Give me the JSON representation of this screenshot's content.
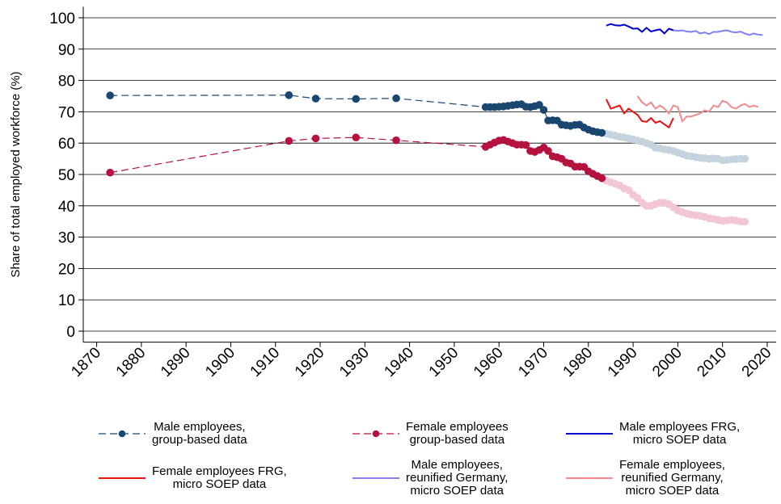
{
  "chart_data": {
    "type": "line",
    "y_label": "Share of total employed workforce (%)",
    "xlim": [
      1867,
      2022
    ],
    "ylim": [
      -3.5,
      103.5
    ],
    "xticks": [
      1870,
      1880,
      1890,
      1900,
      1910,
      1920,
      1930,
      1940,
      1950,
      1960,
      1970,
      1980,
      1990,
      2000,
      2010,
      2020
    ],
    "yticks": [
      0,
      10,
      20,
      30,
      40,
      50,
      60,
      70,
      80,
      90,
      100
    ],
    "grid": true,
    "series": [
      {
        "name": "Male employees,\ngroup-based data",
        "color": "#1a476f",
        "style": "dashed",
        "markers": true,
        "x": [
          1873,
          1913,
          1919,
          1928,
          1937,
          1957,
          1958,
          1959,
          1960,
          1961,
          1962,
          1963,
          1964,
          1965,
          1966,
          1967,
          1968,
          1969,
          1970,
          1971,
          1972,
          1973,
          1974,
          1975,
          1976,
          1977,
          1978,
          1979,
          1980,
          1981,
          1982,
          1983
        ],
        "values": [
          75.2,
          75.3,
          74.2,
          74.1,
          74.3,
          71.5,
          71.5,
          71.5,
          71.6,
          71.7,
          71.9,
          72.1,
          72.3,
          72.4,
          71.6,
          71.5,
          71.8,
          72.2,
          70.6,
          67.2,
          67.3,
          67.2,
          65.9,
          65.7,
          65.5,
          65.8,
          65.9,
          65.0,
          64.3,
          63.8,
          63.5,
          63.3
        ]
      },
      {
        "name": "Female employees\ngroup-based data",
        "color": "#b5123f",
        "style": "dashed",
        "markers": true,
        "x": [
          1873,
          1913,
          1919,
          1928,
          1937,
          1957,
          1958,
          1959,
          1960,
          1961,
          1962,
          1963,
          1964,
          1965,
          1966,
          1967,
          1968,
          1969,
          1970,
          1971,
          1972,
          1973,
          1974,
          1975,
          1976,
          1977,
          1978,
          1979,
          1980,
          1981,
          1982,
          1983
        ],
        "values": [
          50.6,
          60.7,
          61.5,
          61.8,
          60.9,
          58.8,
          59.5,
          60.2,
          60.8,
          61.0,
          60.5,
          60.0,
          59.5,
          59.5,
          59.4,
          57.5,
          57.2,
          57.8,
          58.6,
          57.5,
          55.8,
          55.5,
          55.0,
          53.8,
          53.5,
          52.5,
          52.5,
          52.4,
          51.0,
          50.2,
          49.5,
          48.8
        ]
      },
      {
        "name": "Male employees FRG,\nmicro SOEP data",
        "color": "#0000cc",
        "style": "solid",
        "markers": false,
        "x": [
          1984,
          1985,
          1986,
          1987,
          1988,
          1989,
          1990,
          1991,
          1992,
          1993,
          1994,
          1995,
          1996,
          1997,
          1998,
          1999
        ],
        "values": [
          97.5,
          98.0,
          97.6,
          97.5,
          97.8,
          97.2,
          96.5,
          96.6,
          95.5,
          96.8,
          95.6,
          96.0,
          96.3,
          95.0,
          96.5,
          96.0
        ]
      },
      {
        "name": "Female employees FRG,\nmicro SOEP data",
        "color": "#ee1111",
        "style": "solid",
        "markers": false,
        "x": [
          1984,
          1985,
          1986,
          1987,
          1988,
          1989,
          1990,
          1991,
          1992,
          1993,
          1994,
          1995,
          1996,
          1997,
          1998,
          1999
        ],
        "values": [
          74,
          71,
          71.5,
          72,
          69.5,
          71,
          70,
          69,
          67,
          66.8,
          68,
          66.5,
          67,
          66,
          65,
          68
        ]
      },
      {
        "name": "Male employees,\nreunified Germany,\nmicro SOEP data",
        "color": "#8080f0",
        "style": "solid",
        "markers": false,
        "x": [
          1999,
          2000,
          2001,
          2002,
          2003,
          2004,
          2005,
          2006,
          2007,
          2008,
          2009,
          2010,
          2011,
          2012,
          2013,
          2014,
          2015,
          2016,
          2017,
          2018,
          2019
        ],
        "values": [
          96.0,
          95.8,
          96.0,
          95.6,
          95.5,
          95.8,
          95.0,
          95.3,
          94.8,
          95.5,
          95.5,
          95.8,
          96.0,
          95.5,
          95.3,
          95.6,
          95.0,
          94.5,
          95.0,
          94.6,
          94.5
        ]
      },
      {
        "name": "Female employees,\nreunified Germany,\nmicro SOEP data",
        "color": "#f28c8c",
        "style": "solid",
        "markers": false,
        "x": [
          1991,
          1992,
          1993,
          1994,
          1995,
          1996,
          1997,
          1998,
          1999,
          2000,
          2001,
          2002,
          2003,
          2004,
          2005,
          2006,
          2007,
          2008,
          2009,
          2010,
          2011,
          2012,
          2013,
          2014,
          2015,
          2016,
          2017,
          2018
        ],
        "values": [
          75,
          73,
          72,
          73,
          71,
          72,
          71,
          69.5,
          72,
          71.5,
          67,
          68.5,
          68.5,
          69,
          69.5,
          70.5,
          70,
          72,
          71.5,
          73.5,
          73,
          71.5,
          71,
          72,
          72.5,
          71.5,
          72,
          71.5
        ]
      },
      {
        "color": "#c5d3df",
        "style": "dashed",
        "markers": true,
        "x": [
          1984,
          1985,
          1986,
          1987,
          1988,
          1989,
          1990,
          1991,
          1992,
          1993,
          1994,
          1995,
          1996,
          1997,
          1998,
          1999,
          2000,
          2001,
          2002,
          2003,
          2004,
          2005,
          2006,
          2007,
          2008,
          2009,
          2010,
          2011,
          2012,
          2013,
          2014,
          2015
        ],
        "values": [
          63.0,
          62.7,
          62.4,
          62.0,
          61.8,
          61.5,
          61.2,
          60.8,
          60.5,
          60.0,
          59.5,
          58.5,
          58.3,
          58.0,
          57.8,
          57.5,
          57.0,
          56.5,
          56.0,
          55.8,
          55.5,
          55.3,
          55.2,
          55.0,
          55.1,
          55.0,
          54.5,
          54.6,
          54.8,
          54.9,
          55.0,
          55.0
        ]
      },
      {
        "color": "#f2c6d2",
        "style": "dashed",
        "markers": true,
        "x": [
          1984,
          1985,
          1986,
          1987,
          1988,
          1989,
          1990,
          1991,
          1992,
          1993,
          1994,
          1995,
          1996,
          1997,
          1998,
          1999,
          2000,
          2001,
          2002,
          2003,
          2004,
          2005,
          2006,
          2007,
          2008,
          2009,
          2010,
          2011,
          2012,
          2013,
          2014,
          2015
        ],
        "values": [
          48.0,
          47.5,
          47.0,
          46.5,
          45.5,
          45.0,
          43.5,
          42.5,
          41.0,
          40.0,
          40.0,
          40.5,
          41.0,
          41.0,
          40.5,
          39.5,
          38.5,
          38.0,
          37.5,
          37.2,
          37.0,
          36.8,
          36.5,
          36.0,
          35.8,
          35.5,
          35.2,
          35.3,
          35.5,
          35.3,
          35.0,
          34.9
        ]
      }
    ]
  }
}
